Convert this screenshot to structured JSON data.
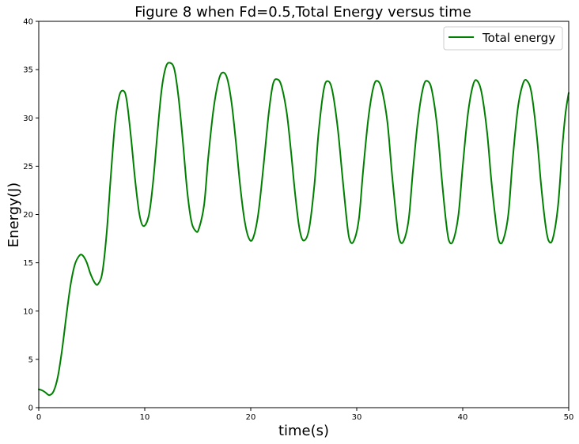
{
  "chart_data": {
    "type": "line",
    "title": "Figure 8 when Fd=0.5,Total Energy versus time",
    "xlabel": "time(s)",
    "ylabel": "Energy(J)",
    "xlim": [
      0,
      50
    ],
    "ylim": [
      0,
      40
    ],
    "xticks": [
      0,
      10,
      20,
      30,
      40,
      50
    ],
    "yticks": [
      0,
      5,
      10,
      15,
      20,
      25,
      30,
      35,
      40
    ],
    "grid": false,
    "legend": {
      "position": "upper right",
      "entries": [
        "Total energy"
      ]
    },
    "series": [
      {
        "name": "Total energy",
        "color": "#008000",
        "x": [
          0,
          0.3,
          0.6,
          1.0,
          1.4,
          1.8,
          2.2,
          2.6,
          3.0,
          3.4,
          3.8,
          4.1,
          4.5,
          4.9,
          5.3,
          5.6,
          6.0,
          6.4,
          6.8,
          7.2,
          7.6,
          8.0,
          8.3,
          8.7,
          9.1,
          9.5,
          9.9,
          10.4,
          10.8,
          11.2,
          11.6,
          12.0,
          12.4,
          12.8,
          13.2,
          13.6,
          14.0,
          14.4,
          14.8,
          15.1,
          15.6,
          16.0,
          16.5,
          17.0,
          17.4,
          17.8,
          18.2,
          18.6,
          19.0,
          19.4,
          19.8,
          20.2,
          20.7,
          21.2,
          21.7,
          22.1,
          22.5,
          22.9,
          23.4,
          23.8,
          24.2,
          24.6,
          25.0,
          25.5,
          26.0,
          26.4,
          26.9,
          27.3,
          27.7,
          28.2,
          28.6,
          29.0,
          29.3,
          29.7,
          30.2,
          30.6,
          31.1,
          31.6,
          32.0,
          32.4,
          32.9,
          33.3,
          33.7,
          34.0,
          34.4,
          34.9,
          35.3,
          35.8,
          36.3,
          36.7,
          37.1,
          37.6,
          38.0,
          38.4,
          38.7,
          39.1,
          39.6,
          40.0,
          40.5,
          41.0,
          41.4,
          41.8,
          42.3,
          42.7,
          43.1,
          43.4,
          43.8,
          44.3,
          44.7,
          45.2,
          45.7,
          46.1,
          46.5,
          47.0,
          47.4,
          47.8,
          48.1,
          48.5,
          49.0,
          49.4,
          49.7,
          50.0
        ],
        "y": [
          1.9,
          1.8,
          1.6,
          1.3,
          1.7,
          3.2,
          6.0,
          9.5,
          12.7,
          14.8,
          15.7,
          15.8,
          15.1,
          13.8,
          12.9,
          12.8,
          14.0,
          18.0,
          24.0,
          29.5,
          32.3,
          32.8,
          31.8,
          28.0,
          23.5,
          20.0,
          18.8,
          20.0,
          23.5,
          28.5,
          33.0,
          35.3,
          35.7,
          35.0,
          32.0,
          27.5,
          22.5,
          19.3,
          18.3,
          18.5,
          21.0,
          26.0,
          31.0,
          34.0,
          34.7,
          34.0,
          31.5,
          27.5,
          23.0,
          19.5,
          17.6,
          17.5,
          20.0,
          25.0,
          30.5,
          33.5,
          34.0,
          33.3,
          30.5,
          26.5,
          22.0,
          18.5,
          17.3,
          18.5,
          23.0,
          28.5,
          33.0,
          33.8,
          32.8,
          29.0,
          24.5,
          20.0,
          17.5,
          17.2,
          19.5,
          24.5,
          30.0,
          33.3,
          33.8,
          32.8,
          29.5,
          24.5,
          20.0,
          17.5,
          17.2,
          19.5,
          24.5,
          30.0,
          33.3,
          33.8,
          32.8,
          29.0,
          24.0,
          19.5,
          17.3,
          17.3,
          20.0,
          25.0,
          30.5,
          33.5,
          33.8,
          32.5,
          28.5,
          23.5,
          19.5,
          17.3,
          17.3,
          20.0,
          25.5,
          31.0,
          33.6,
          33.8,
          32.5,
          28.0,
          23.0,
          19.0,
          17.3,
          17.5,
          21.0,
          27.0,
          30.5,
          32.6
        ]
      }
    ]
  }
}
